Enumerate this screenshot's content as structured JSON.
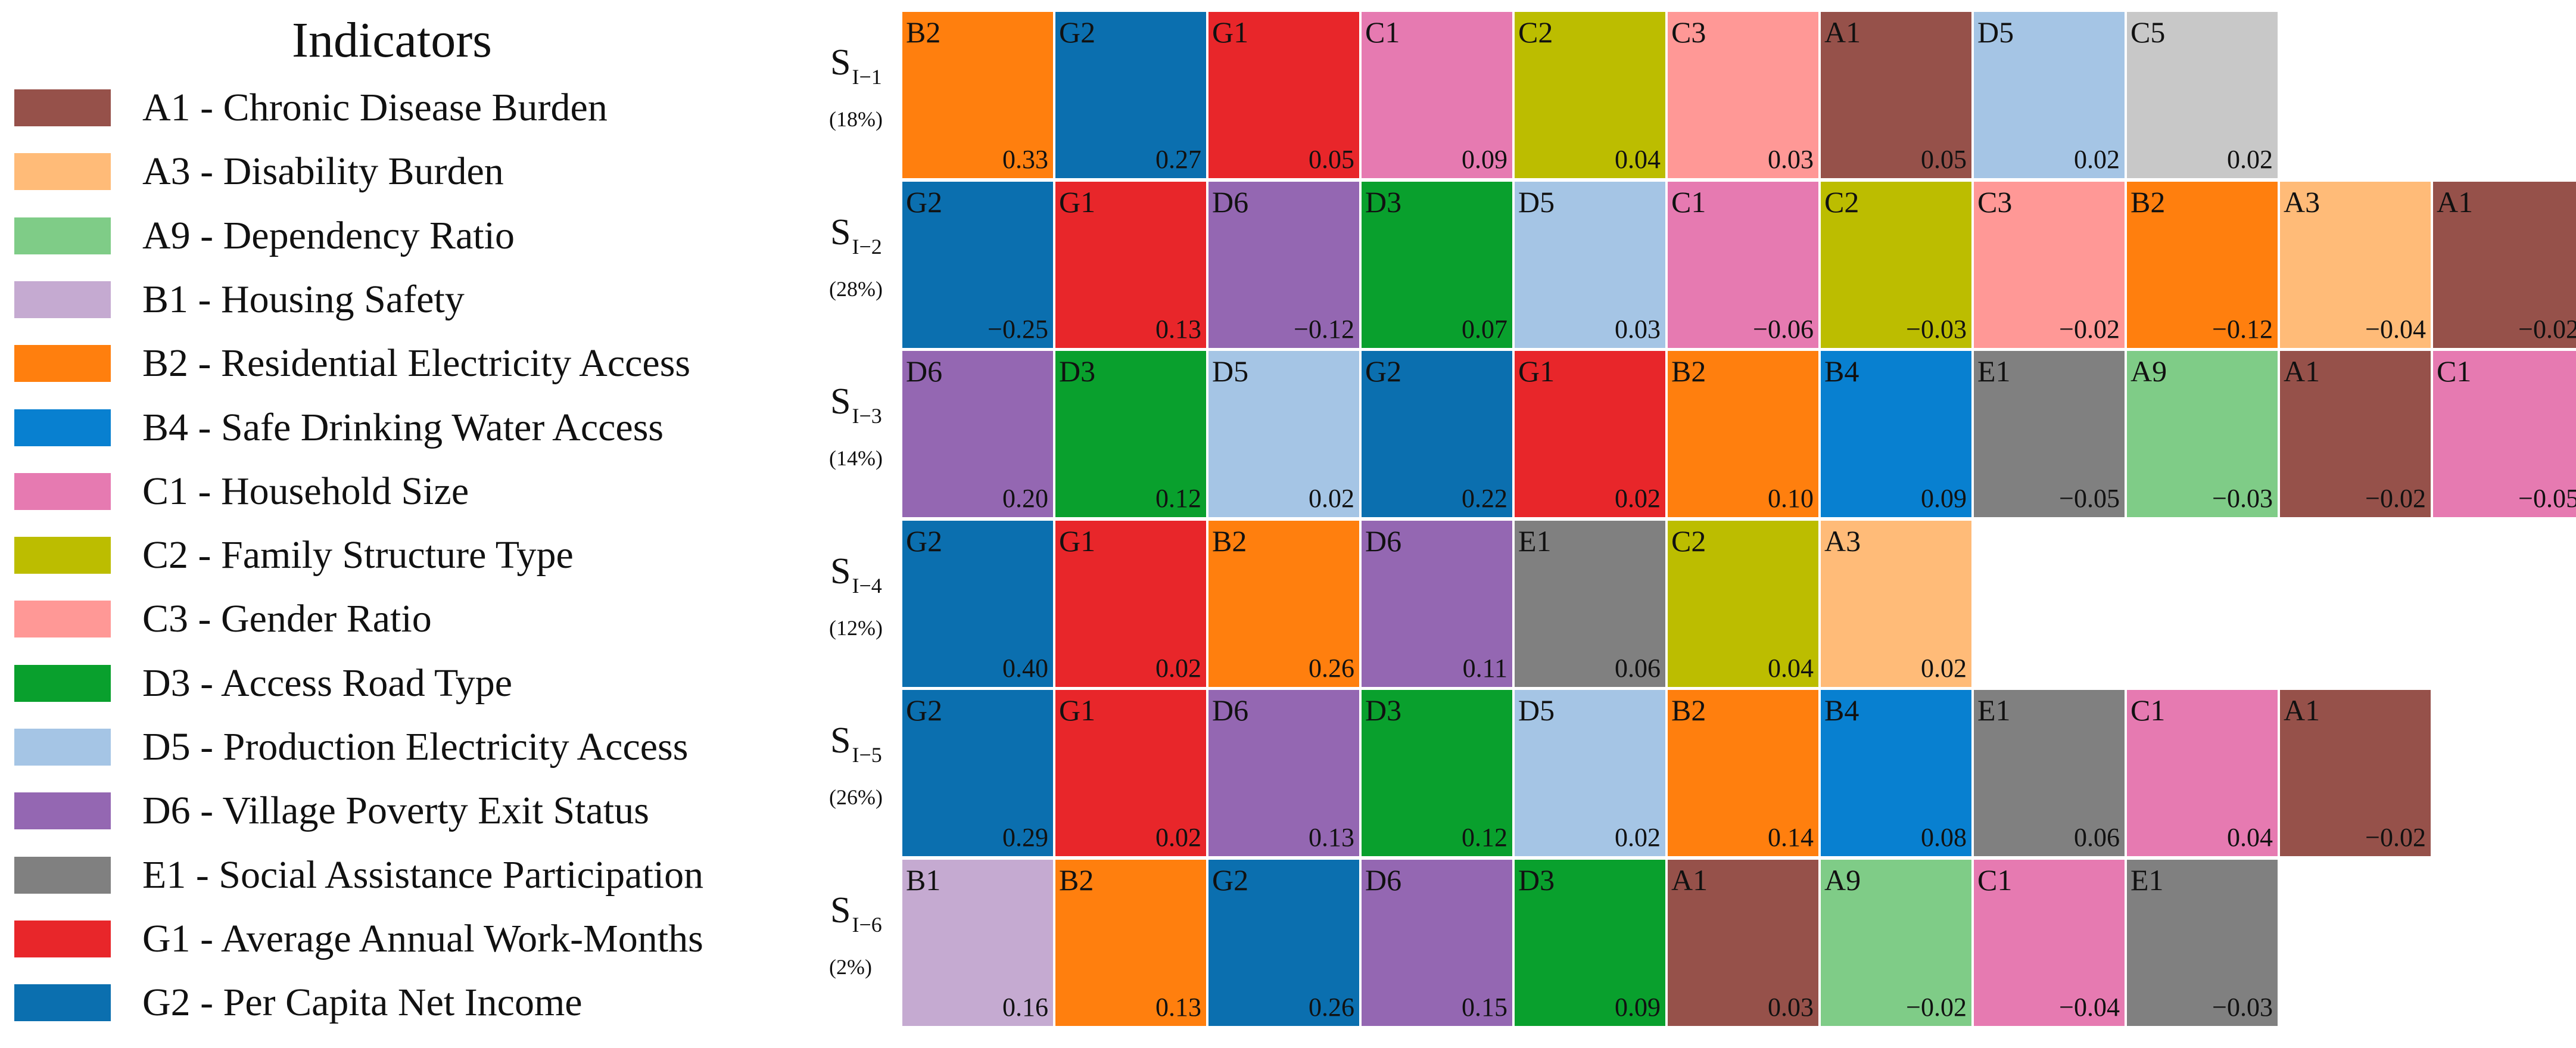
{
  "legend": {
    "title": "Indicators",
    "items": [
      {
        "label": "A1 - Chronic Disease Burden",
        "color": "#96514a"
      },
      {
        "label": "A3 - Disability Burden",
        "color": "#ffbb78"
      },
      {
        "label": "A9 - Dependency Ratio",
        "color": "#7fcc87"
      },
      {
        "label": "B1 - Housing Safety",
        "color": "#c5aad1"
      },
      {
        "label": "B2 - Residential Electricity Access",
        "color": "#ff7f0e"
      },
      {
        "label": "B4 - Safe Drinking Water Access",
        "color": "#0880d0"
      },
      {
        "label": "C1 - Household Size",
        "color": "#e67ab1"
      },
      {
        "label": "C2 - Family Structure Type",
        "color": "#bcbd00"
      },
      {
        "label": "C3 - Gender Ratio",
        "color": "#ff9896"
      },
      {
        "label": "D3 - Access Road Type",
        "color": "#09a02d"
      },
      {
        "label": "D5 - Production Electricity Access",
        "color": "#a5c5e5"
      },
      {
        "label": "D6 - Village Poverty Exit Status",
        "color": "#9467b2"
      },
      {
        "label": "E1 - Social Assistance Participation",
        "color": "#808080"
      },
      {
        "label": "G1 - Average Annual Work-Months",
        "color": "#e8262a"
      },
      {
        "label": "G2 - Per Capita Net Income",
        "color": "#0b6faf"
      }
    ]
  },
  "chart_data": {
    "type": "heatmap",
    "colors": {
      "A1": "#96514a",
      "A3": "#ffbb78",
      "A9": "#7fcc87",
      "B1": "#c5aad1",
      "B2": "#ff7f0e",
      "B4": "#0880d0",
      "C1": "#e67ab1",
      "C2": "#bcbd00",
      "C3": "#ff9896",
      "C5": "#c8c8c8",
      "D3": "#09a02d",
      "D5": "#a5c5e5",
      "D6": "#9467b2",
      "E1": "#808080",
      "G1": "#e8262a",
      "G2": "#0b6faf"
    },
    "rows": [
      {
        "name": "S",
        "sub": "I−1",
        "share": "(18%)",
        "cells": [
          {
            "code": "B2",
            "value": "0.33"
          },
          {
            "code": "G2",
            "value": "0.27"
          },
          {
            "code": "G1",
            "value": "0.05"
          },
          {
            "code": "C1",
            "value": "0.09"
          },
          {
            "code": "C2",
            "value": "0.04"
          },
          {
            "code": "C3",
            "value": "0.03"
          },
          {
            "code": "A1",
            "value": "0.05"
          },
          {
            "code": "D5",
            "value": "0.02"
          },
          {
            "code": "C5",
            "value": "0.02"
          }
        ]
      },
      {
        "name": "S",
        "sub": "I−2",
        "share": "(28%)",
        "cells": [
          {
            "code": "G2",
            "value": "−0.25"
          },
          {
            "code": "G1",
            "value": "0.13"
          },
          {
            "code": "D6",
            "value": "−0.12"
          },
          {
            "code": "D3",
            "value": "0.07"
          },
          {
            "code": "D5",
            "value": "0.03"
          },
          {
            "code": "C1",
            "value": "−0.06"
          },
          {
            "code": "C2",
            "value": "−0.03"
          },
          {
            "code": "C3",
            "value": "−0.02"
          },
          {
            "code": "B2",
            "value": "−0.12"
          },
          {
            "code": "A3",
            "value": "−0.04"
          },
          {
            "code": "A1",
            "value": "−0.02"
          }
        ]
      },
      {
        "name": "S",
        "sub": "I−3",
        "share": "(14%)",
        "cells": [
          {
            "code": "D6",
            "value": "0.20"
          },
          {
            "code": "D3",
            "value": "0.12"
          },
          {
            "code": "D5",
            "value": "0.02"
          },
          {
            "code": "G2",
            "value": "0.22"
          },
          {
            "code": "G1",
            "value": "0.02"
          },
          {
            "code": "B2",
            "value": "0.10"
          },
          {
            "code": "B4",
            "value": "0.09"
          },
          {
            "code": "E1",
            "value": "−0.05"
          },
          {
            "code": "A9",
            "value": "−0.03"
          },
          {
            "code": "A1",
            "value": "−0.02"
          },
          {
            "code": "C1",
            "value": "−0.05"
          }
        ]
      },
      {
        "name": "S",
        "sub": "I−4",
        "share": "(12%)",
        "cells": [
          {
            "code": "G2",
            "value": "0.40"
          },
          {
            "code": "G1",
            "value": "0.02"
          },
          {
            "code": "B2",
            "value": "0.26"
          },
          {
            "code": "D6",
            "value": "0.11"
          },
          {
            "code": "E1",
            "value": "0.06"
          },
          {
            "code": "C2",
            "value": "0.04"
          },
          {
            "code": "A3",
            "value": "0.02"
          }
        ]
      },
      {
        "name": "S",
        "sub": "I−5",
        "share": "(26%)",
        "cells": [
          {
            "code": "G2",
            "value": "0.29"
          },
          {
            "code": "G1",
            "value": "0.02"
          },
          {
            "code": "D6",
            "value": "0.13"
          },
          {
            "code": "D3",
            "value": "0.12"
          },
          {
            "code": "D5",
            "value": "0.02"
          },
          {
            "code": "B2",
            "value": "0.14"
          },
          {
            "code": "B4",
            "value": "0.08"
          },
          {
            "code": "E1",
            "value": "0.06"
          },
          {
            "code": "C1",
            "value": "0.04"
          },
          {
            "code": "A1",
            "value": "−0.02"
          }
        ]
      },
      {
        "name": "S",
        "sub": "I−6",
        "share": "(2%)",
        "cells": [
          {
            "code": "B1",
            "value": "0.16"
          },
          {
            "code": "B2",
            "value": "0.13"
          },
          {
            "code": "G2",
            "value": "0.26"
          },
          {
            "code": "D6",
            "value": "0.15"
          },
          {
            "code": "D3",
            "value": "0.09"
          },
          {
            "code": "A1",
            "value": "0.03"
          },
          {
            "code": "A9",
            "value": "−0.02"
          },
          {
            "code": "C1",
            "value": "−0.04"
          },
          {
            "code": "E1",
            "value": "−0.03"
          }
        ]
      }
    ]
  }
}
